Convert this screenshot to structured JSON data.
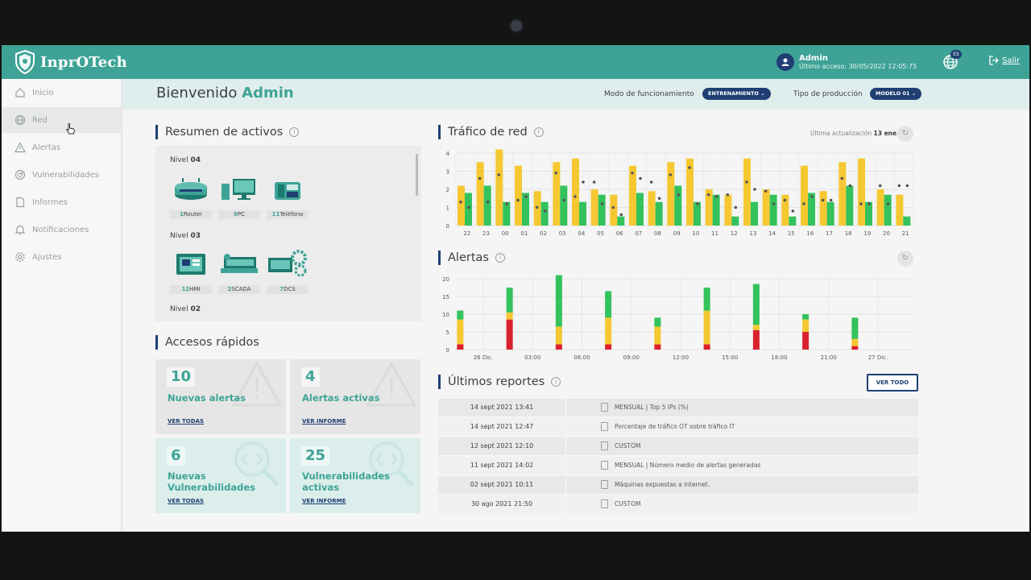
{
  "app": {
    "brand": "InprOTech"
  },
  "user": {
    "name": "Admin",
    "last_access": "Último acceso: 30/05/2022 12:05:75"
  },
  "lang": {
    "code": "ES"
  },
  "logout": {
    "label": "Salir"
  },
  "sidebar": {
    "items": [
      {
        "label": "Inicio",
        "icon": "home-icon"
      },
      {
        "label": "Red",
        "icon": "globe-icon"
      },
      {
        "label": "Alertas",
        "icon": "warning-icon"
      },
      {
        "label": "Vulnerabilidades",
        "icon": "radar-icon"
      },
      {
        "label": "Informes",
        "icon": "document-icon"
      },
      {
        "label": "Notificaciones",
        "icon": "bell-icon"
      },
      {
        "label": "Ajustes",
        "icon": "gear-icon"
      }
    ],
    "active_index": 1
  },
  "header": {
    "welcome_prefix": "Bienvenido",
    "welcome_name": "Admin",
    "mode_label": "Modo de funcionamiento",
    "mode_value": "ENTRENAMIENTO ⌄",
    "production_label": "Tipo de producción",
    "production_value": "MODELO 01 ⌄"
  },
  "assets": {
    "title": "Resumen de activos",
    "levels": [
      {
        "label": "Nivel",
        "num": "04",
        "devices": [
          {
            "count": "1",
            "name": "Router",
            "icon": "router-icon"
          },
          {
            "count": "9",
            "name": "PC",
            "icon": "pc-icon"
          },
          {
            "count": "11",
            "name": "Teléfono",
            "icon": "phone-icon"
          }
        ]
      },
      {
        "label": "Nivel",
        "num": "03",
        "devices": [
          {
            "count": "12",
            "name": "HMI",
            "icon": "hmi-icon"
          },
          {
            "count": "2",
            "name": "SCADA",
            "icon": "scada-icon"
          },
          {
            "count": "7",
            "name": "DCS",
            "icon": "dcs-icon"
          }
        ]
      },
      {
        "label": "Nivel",
        "num": "02",
        "devices": []
      }
    ]
  },
  "quick": {
    "title": "Accesos rápidos",
    "cards": [
      {
        "number": "10",
        "label": "Nuevas alertas",
        "link": "VER TODAS"
      },
      {
        "number": "4",
        "label": "Alertas activas",
        "link": "VER INFORME"
      },
      {
        "number": "6",
        "label": "Nuevas Vulnerabilidades",
        "link": "VER TODAS"
      },
      {
        "number": "25",
        "label": "Vulnerabilidades activas",
        "link": "VER INFORME"
      }
    ]
  },
  "traffic": {
    "title": "Tráfico de red",
    "updated_label": "Última actualización",
    "updated_value": "13 ene."
  },
  "alerts_chart": {
    "title": "Alertas"
  },
  "reports": {
    "title": "Últimos reportes",
    "button": "VER TODO",
    "rows": [
      {
        "date": "14 sept 2021 13:41",
        "text": "MENSUAL | Top 5 IPs (%)"
      },
      {
        "date": "14 sept 2021 12:47",
        "text": "Porcentaje de tráfico OT sobre tráfico IT"
      },
      {
        "date": "12 sept 2021 12:10",
        "text": "CUSTOM"
      },
      {
        "date": "11 sept 2021 14:02",
        "text": "MENSUAL | Número medio de alertas generadas"
      },
      {
        "date": "02 sept 2021 10:11",
        "text": "Máquinas expuestas a internet."
      },
      {
        "date": "30 ago 2021 21:50",
        "text": "CUSTOM"
      }
    ]
  },
  "colors": {
    "teal": "#3ea396",
    "navy": "#1f3f73",
    "yellow": "#f5c832",
    "green": "#33c25c",
    "red": "#d9222e",
    "dot": "#555555"
  },
  "chart_data": [
    {
      "type": "bar",
      "title": "Tráfico de red",
      "categories": [
        "22",
        "23",
        "00",
        "01",
        "02",
        "03",
        "04",
        "05",
        "06",
        "07",
        "08",
        "09",
        "10",
        "11",
        "12",
        "13",
        "14",
        "15",
        "16",
        "17",
        "18",
        "19",
        "20",
        "21"
      ],
      "ylim": [
        0,
        4
      ],
      "yticks": [
        0,
        1,
        2,
        3,
        4
      ],
      "series": [
        {
          "name": "yellow",
          "values": [
            2.2,
            3.5,
            4.2,
            3.3,
            1.9,
            3.5,
            3.7,
            2.0,
            1.7,
            3.3,
            1.9,
            3.5,
            3.7,
            2.0,
            1.7,
            3.7,
            2.0,
            1.7,
            3.3,
            1.9,
            3.5,
            3.7,
            2.0,
            1.7
          ]
        },
        {
          "name": "green",
          "values": [
            1.8,
            2.2,
            1.3,
            1.8,
            1.3,
            2.2,
            1.3,
            1.7,
            0.5,
            1.8,
            1.3,
            2.2,
            1.3,
            1.7,
            0.5,
            1.3,
            1.7,
            0.5,
            1.8,
            1.3,
            2.2,
            1.3,
            1.7,
            0.5
          ]
        },
        {
          "name": "points",
          "values": [
            1.3,
            2.6,
            2.8,
            1.4,
            1.0,
            2.9,
            1.6,
            2.4,
            1.0,
            2.9,
            2.4,
            2.8,
            3.2,
            1.7,
            1.7,
            2.4,
            1.9,
            1.4,
            1.2,
            1.4,
            2.6,
            1.2,
            2.2,
            2.2
          ]
        },
        {
          "name": "points2",
          "values": [
            1.0,
            1.3,
            1.2,
            1.6,
            0.8,
            1.4,
            2.4,
            1.2,
            0.6,
            2.6,
            1.5,
            1.7,
            1.2,
            1.6,
            1.0,
            2.0,
            1.2,
            0.8,
            1.6,
            1.4,
            2.2,
            1.2,
            1.2,
            2.2
          ]
        }
      ]
    },
    {
      "type": "bar",
      "title": "Alertas",
      "stacked": true,
      "categories": [
        "26 Dic.",
        "03:00",
        "06:00",
        "09:00",
        "12:00",
        "15:00",
        "18:00",
        "21:00",
        "27 Dic."
      ],
      "ylim": [
        0,
        20
      ],
      "yticks": [
        0,
        5,
        10,
        15,
        20
      ],
      "bars": [
        {
          "red": 1.5,
          "yellow": 7,
          "green": 2.5
        },
        {
          "red": 8.5,
          "yellow": 2,
          "green": 7
        },
        {
          "red": 1.5,
          "yellow": 5,
          "green": 14.5
        },
        {
          "red": 1.5,
          "yellow": 7.5,
          "green": 7.5
        },
        {
          "red": 1.5,
          "yellow": 5,
          "green": 2.5
        },
        {
          "red": 1.5,
          "yellow": 9.5,
          "green": 6.5
        },
        {
          "red": 5.5,
          "yellow": 1.5,
          "green": 11.5
        },
        {
          "red": 5,
          "yellow": 3.5,
          "green": 1.5
        },
        {
          "red": 1,
          "yellow": 2,
          "green": 6
        }
      ]
    }
  ]
}
